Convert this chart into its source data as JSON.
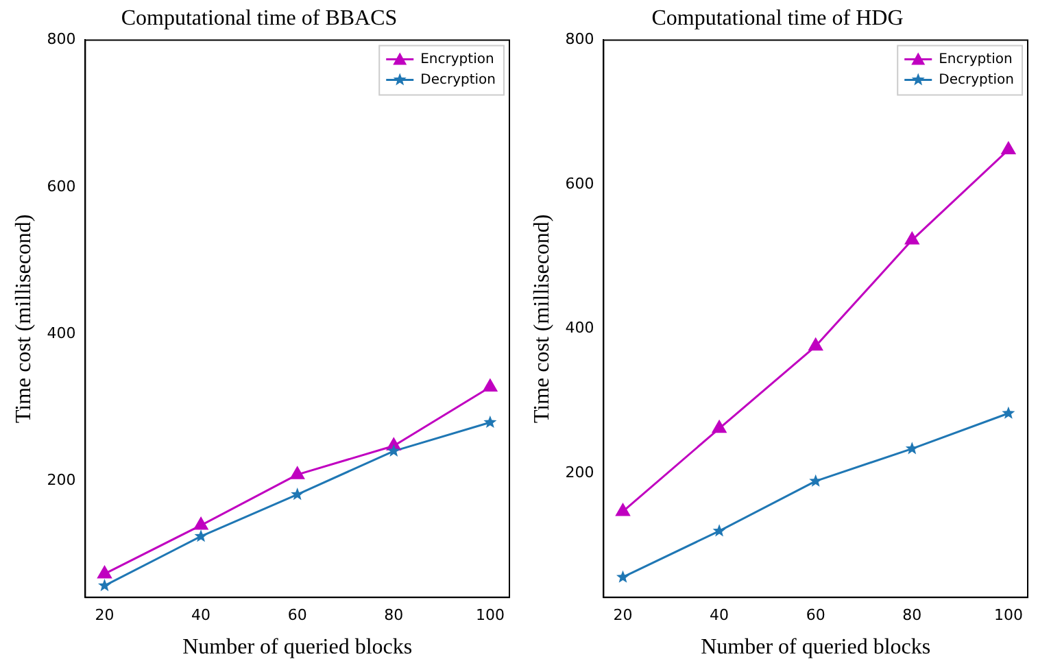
{
  "chart_data": [
    {
      "type": "line",
      "title": "Computational time of BBACS",
      "xlabel": "Number of queried blocks",
      "ylabel": "Time cost (millisecond)",
      "x": [
        20,
        40,
        60,
        80,
        100
      ],
      "series": [
        {
          "name": "Encryption",
          "color": "#c000c0",
          "marker": "triangle",
          "values": [
            74,
            140,
            209,
            248,
            328
          ]
        },
        {
          "name": "Decryption",
          "color": "#1f77b4",
          "marker": "star",
          "values": [
            58,
            125,
            182,
            241,
            280
          ]
        }
      ],
      "xlim": [
        16,
        104
      ],
      "xticks": [
        20,
        40,
        60,
        80,
        100
      ],
      "ylim": [
        42,
        800
      ],
      "yticks": [
        200,
        400,
        600,
        800
      ],
      "legend": "top right",
      "grid": false
    },
    {
      "type": "line",
      "title": "Computational time of HDG",
      "xlabel": "Number of queried blocks",
      "ylabel": "Time cost (millisecond)",
      "x": [
        20,
        40,
        60,
        80,
        100
      ],
      "series": [
        {
          "name": "Encryption",
          "color": "#c000c0",
          "marker": "triangle",
          "values": [
            147,
            262,
            376,
            523,
            648
          ]
        },
        {
          "name": "Decryption",
          "color": "#1f77b4",
          "marker": "star",
          "values": [
            56,
            120,
            189,
            234,
            283
          ]
        }
      ],
      "xlim": [
        16,
        104
      ],
      "xticks": [
        20,
        40,
        60,
        80,
        100
      ],
      "ylim": [
        28,
        800
      ],
      "yticks": [
        200,
        400,
        600,
        800
      ],
      "legend": "top right",
      "grid": false
    }
  ]
}
